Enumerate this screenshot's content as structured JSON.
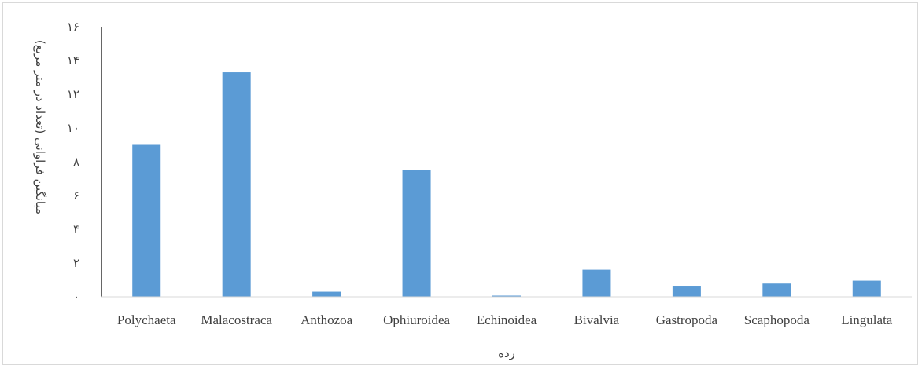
{
  "chart_data": {
    "type": "bar",
    "categories": [
      "Polychaeta",
      "Malacostraca",
      "Anthozoa",
      "Ophiuroidea",
      "Echinoidea",
      "Bivalvia",
      "Gastropoda",
      "Scaphopoda",
      "Lingulata"
    ],
    "values": [
      9.0,
      13.3,
      0.3,
      7.5,
      0.07,
      1.6,
      0.65,
      0.78,
      0.95
    ],
    "ylim": [
      0,
      16
    ],
    "yticks": [
      0,
      2,
      4,
      6,
      8,
      10,
      12,
      14,
      16
    ],
    "ytick_labels": [
      "۰",
      "۲",
      "۴",
      "۶",
      "۸",
      "۱۰",
      "۱۲",
      "۱۴",
      "۱۶"
    ],
    "xlabel": "رده",
    "ylabel": "میانگین فراوانی (تعداد در متر مربع)",
    "grid": false,
    "bar_color": "#5b9bd5",
    "axis_color": "#000000"
  }
}
